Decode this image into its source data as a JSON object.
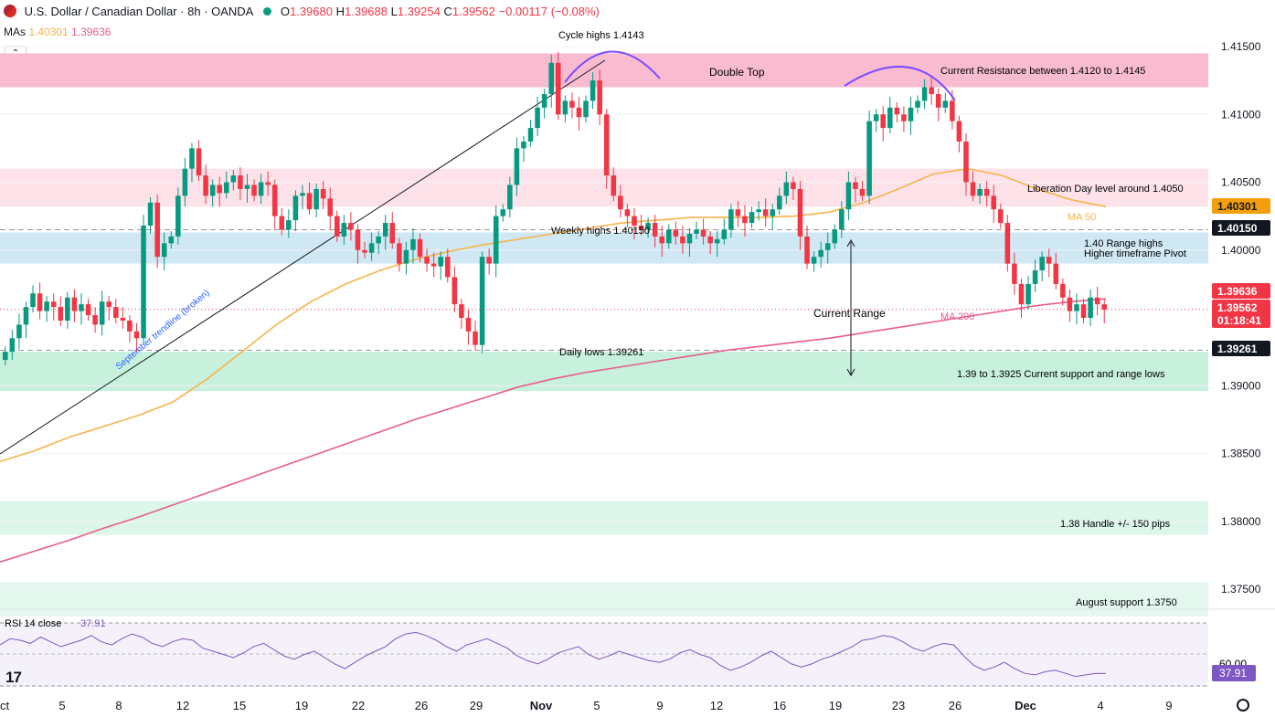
{
  "header": {
    "symbol": "U.S. Dollar / Canadian Dollar · 8h · OANDA",
    "open_label": "O",
    "open": "1.39680",
    "high_label": "H",
    "high": "1.39688",
    "low_label": "L",
    "low": "1.39254",
    "close_label": "C",
    "close": "1.39562",
    "change": "−0.00117 (−0.08%)"
  },
  "mas": {
    "label": "MAs",
    "ma50": "1.40301",
    "ma200": "1.39636"
  },
  "colors": {
    "up": "#089981",
    "down": "#f23645",
    "ma50": "#f7b44c",
    "ma200": "#e85d8b",
    "rsi": "#7e57c2"
  },
  "chart_data": {
    "type": "candlestick",
    "y_ticks": [
      "1.41500",
      "1.41000",
      "1.40500",
      "1.40000",
      "1.39000",
      "1.38500",
      "1.38000",
      "1.37500"
    ],
    "x_ticks": [
      "ct",
      "5",
      "8",
      "12",
      "15",
      "19",
      "22",
      "26",
      "29",
      "Nov",
      "5",
      "9",
      "12",
      "16",
      "19",
      "23",
      "26",
      "Dec",
      "4",
      "9"
    ],
    "price_badges": [
      {
        "value": "1.40301",
        "color": "#f59e0b",
        "text_color": "#131722"
      },
      {
        "value": "1.40150",
        "color": "#131722",
        "text_color": "#ffffff"
      },
      {
        "value": "1.39636",
        "color": "#f23645",
        "text_color": "#ffffff"
      },
      {
        "value": "1.39562",
        "color": "#f23645",
        "text_color": "#ffffff"
      },
      {
        "value": "01:18:41",
        "color": "#f23645",
        "text_color": "#ffffff"
      },
      {
        "value": "1.39261",
        "color": "#131722",
        "text_color": "#ffffff"
      }
    ],
    "annotations": {
      "cycle_highs": "Cycle highs 1.4143",
      "double_top": "Double Top",
      "current_resistance": "Current Resistance between 1.4120 to 1.4145",
      "liberation_day": "Liberation Day level around 1.4050",
      "ma50": "MA 50",
      "weekly_highs": "Weekly highs 1.40150",
      "range_highs": "1.40 Range highs",
      "pivot": "Higher timeframe Pivot",
      "current_range": "Current Range",
      "ma200": "MA 200",
      "daily_lows": "Daily lows 1.39261",
      "support": "1.39 to 1.3925 Current support and range lows",
      "trendline": "September trendline (broken)",
      "handle": "1.38 Handle +/- 150 pips",
      "august": "August support 1.3750"
    },
    "zones": [
      {
        "from": 1.412,
        "to": 1.4145,
        "color": "#f8bbd0"
      },
      {
        "from": 1.4032,
        "to": 1.406,
        "color": "#fde2ea"
      },
      {
        "from": 1.399,
        "to": 1.4013,
        "color": "#cfe8f3"
      },
      {
        "from": 1.3896,
        "to": 1.3925,
        "color": "#c7f0dd"
      },
      {
        "from": 1.379,
        "to": 1.3815,
        "color": "#dcf6ea"
      },
      {
        "from": 1.373,
        "to": 1.3755,
        "color": "#e3f7ee"
      }
    ],
    "levels": [
      1.4015,
      1.39261
    ],
    "ma50_series": [
      1.3844,
      1.3852,
      1.3862,
      1.387,
      1.3878,
      1.3888,
      1.3905,
      1.3925,
      1.3945,
      1.3962,
      1.3975,
      1.3985,
      1.3993,
      1.3999,
      1.4004,
      1.4008,
      1.4012,
      1.4016,
      1.402,
      1.4022,
      1.4024,
      1.4024,
      1.4024,
      1.4025,
      1.4028,
      1.4035,
      1.4045,
      1.4056,
      1.406,
      1.4055,
      1.4045,
      1.4037,
      1.4032
    ],
    "ma200_series": [
      1.377,
      1.3778,
      1.3786,
      1.3795,
      1.3803,
      1.3812,
      1.3821,
      1.383,
      1.3839,
      1.3848,
      1.3857,
      1.3866,
      1.3875,
      1.3883,
      1.3891,
      1.3899,
      1.3905,
      1.391,
      1.3914,
      1.3918,
      1.3922,
      1.3926,
      1.3929,
      1.3932,
      1.3935,
      1.3939,
      1.3943,
      1.3947,
      1.3951,
      1.3955,
      1.3959,
      1.3962,
      1.3964
    ],
    "closes": [
      1.3925,
      1.3935,
      1.3945,
      1.3958,
      1.3968,
      1.3955,
      1.3962,
      1.3958,
      1.3948,
      1.3965,
      1.3955,
      1.396,
      1.3952,
      1.3945,
      1.3962,
      1.3958,
      1.395,
      1.3948,
      1.394,
      1.3935,
      1.4018,
      1.4035,
      1.3995,
      1.4005,
      1.401,
      1.404,
      1.406,
      1.4075,
      1.4055,
      1.404,
      1.4048,
      1.4042,
      1.405,
      1.4055,
      1.4045,
      1.4048,
      1.404,
      1.405,
      1.4048,
      1.4025,
      1.4015,
      1.4022,
      1.404,
      1.4042,
      1.403,
      1.4045,
      1.4038,
      1.4025,
      1.401,
      1.402,
      1.4015,
      1.4,
      1.3998,
      1.4005,
      1.401,
      1.402,
      1.4005,
      1.399,
      1.4,
      1.4008,
      1.3995,
      1.399,
      1.3988,
      1.3995,
      1.398,
      1.396,
      1.395,
      1.394,
      1.393,
      1.3995,
      1.399,
      1.4025,
      1.403,
      1.4048,
      1.4075,
      1.408,
      1.409,
      1.4105,
      1.4115,
      1.4138,
      1.41,
      1.411,
      1.4105,
      1.4098,
      1.411,
      1.4125,
      1.41,
      1.4055,
      1.404,
      1.403,
      1.4025,
      1.4018,
      1.4015,
      1.402,
      1.401,
      1.4005,
      1.4015,
      1.401,
      1.4005,
      1.4012,
      1.4015,
      1.401,
      1.4005,
      1.4008,
      1.4015,
      1.403,
      1.4025,
      1.402,
      1.4028,
      1.403,
      1.4025,
      1.403,
      1.404,
      1.405,
      1.4045,
      1.401,
      1.399,
      1.3995,
      1.4,
      1.4005,
      1.4015,
      1.403,
      1.405,
      1.4045,
      1.404,
      1.4095,
      1.41,
      1.409,
      1.4105,
      1.41,
      1.4095,
      1.4105,
      1.411,
      1.412,
      1.4115,
      1.4105,
      1.411,
      1.4095,
      1.408,
      1.405,
      1.404,
      1.4045,
      1.404,
      1.403,
      1.402,
      1.399,
      1.3975,
      1.396,
      1.3975,
      1.3985,
      1.3995,
      1.399,
      1.3975,
      1.3965,
      1.3955,
      1.396,
      1.395,
      1.3965,
      1.396,
      1.3956
    ],
    "rsi": {
      "label": "RSI 14 close",
      "value": "37.91",
      "ticks": [
        "60.00"
      ],
      "series": [
        56,
        60,
        59,
        57,
        61,
        58,
        55,
        57,
        59,
        62,
        58,
        56,
        60,
        63,
        61,
        57,
        55,
        58,
        60,
        59,
        54,
        52,
        50,
        48,
        51,
        55,
        57,
        53,
        49,
        47,
        50,
        52,
        48,
        44,
        41,
        45,
        49,
        52,
        55,
        60,
        63,
        64,
        62,
        59,
        55,
        52,
        56,
        58,
        60,
        57,
        54,
        49,
        46,
        44,
        47,
        51,
        53,
        55,
        50,
        47,
        49,
        52,
        50,
        48,
        46,
        45,
        47,
        51,
        53,
        50,
        48,
        43,
        40,
        42,
        45,
        49,
        52,
        48,
        44,
        42,
        44,
        47,
        49,
        52,
        55,
        59,
        60,
        62,
        61,
        58,
        54,
        52,
        55,
        57,
        56,
        49,
        43,
        40,
        42,
        45,
        41,
        38,
        37,
        39,
        40,
        38,
        36,
        37,
        38,
        37.91
      ]
    }
  }
}
